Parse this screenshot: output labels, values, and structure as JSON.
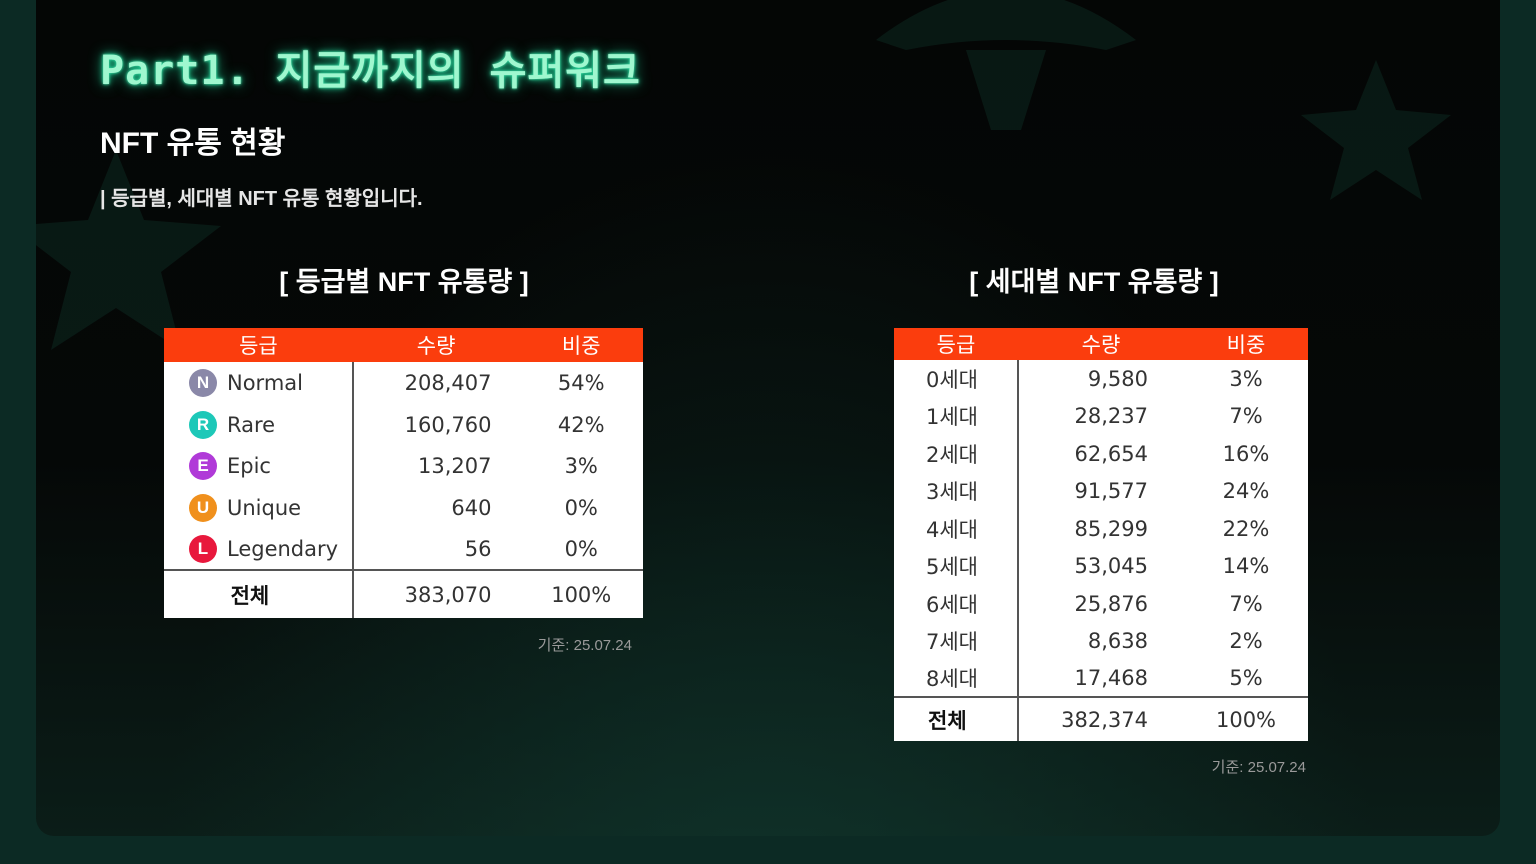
{
  "page_title": "Part1. 지금까지의 슈퍼워크",
  "section_title": "NFT 유통 현황",
  "subtitle": "| 등급별, 세대별 NFT 유통 현황입니다.",
  "grade_table": {
    "heading": "[ 등급별 NFT 유통량 ]",
    "header_color": "#fb3d0d",
    "columns": [
      "등급",
      "수량",
      "비중"
    ],
    "rows": [
      {
        "badge": "N",
        "badge_color": "#8a88a8",
        "grade": "Normal",
        "qty": "208,407",
        "ratio": "54%"
      },
      {
        "badge": "R",
        "badge_color": "#1dc8b8",
        "grade": "Rare",
        "qty": "160,760",
        "ratio": "42%"
      },
      {
        "badge": "E",
        "badge_color": "#b03ad8",
        "grade": "Epic",
        "qty": "13,207",
        "ratio": "3%"
      },
      {
        "badge": "U",
        "badge_color": "#f0901c",
        "grade": "Unique",
        "qty": "640",
        "ratio": "0%"
      },
      {
        "badge": "L",
        "badge_color": "#e8183c",
        "grade": "Legendary",
        "qty": "56",
        "ratio": "0%"
      }
    ],
    "total": {
      "label": "전체",
      "qty": "383,070",
      "ratio": "100%"
    },
    "note": "기준: 25.07.24"
  },
  "generation_table": {
    "heading": "[ 세대별 NFT 유통량 ]",
    "columns": [
      "등급",
      "수량",
      "비중"
    ],
    "rows": [
      {
        "gen": "0세대",
        "qty": "9,580",
        "ratio": "3%"
      },
      {
        "gen": "1세대",
        "qty": "28,237",
        "ratio": "7%"
      },
      {
        "gen": "2세대",
        "qty": "62,654",
        "ratio": "16%"
      },
      {
        "gen": "3세대",
        "qty": "91,577",
        "ratio": "24%"
      },
      {
        "gen": "4세대",
        "qty": "85,299",
        "ratio": "22%"
      },
      {
        "gen": "5세대",
        "qty": "53,045",
        "ratio": "14%"
      },
      {
        "gen": "6세대",
        "qty": "25,876",
        "ratio": "7%"
      },
      {
        "gen": "7세대",
        "qty": "8,638",
        "ratio": "2%"
      },
      {
        "gen": "8세대",
        "qty": "17,468",
        "ratio": "5%"
      }
    ],
    "total": {
      "label": "전체",
      "qty": "382,374",
      "ratio": "100%"
    },
    "note": "기준: 25.07.24"
  }
}
